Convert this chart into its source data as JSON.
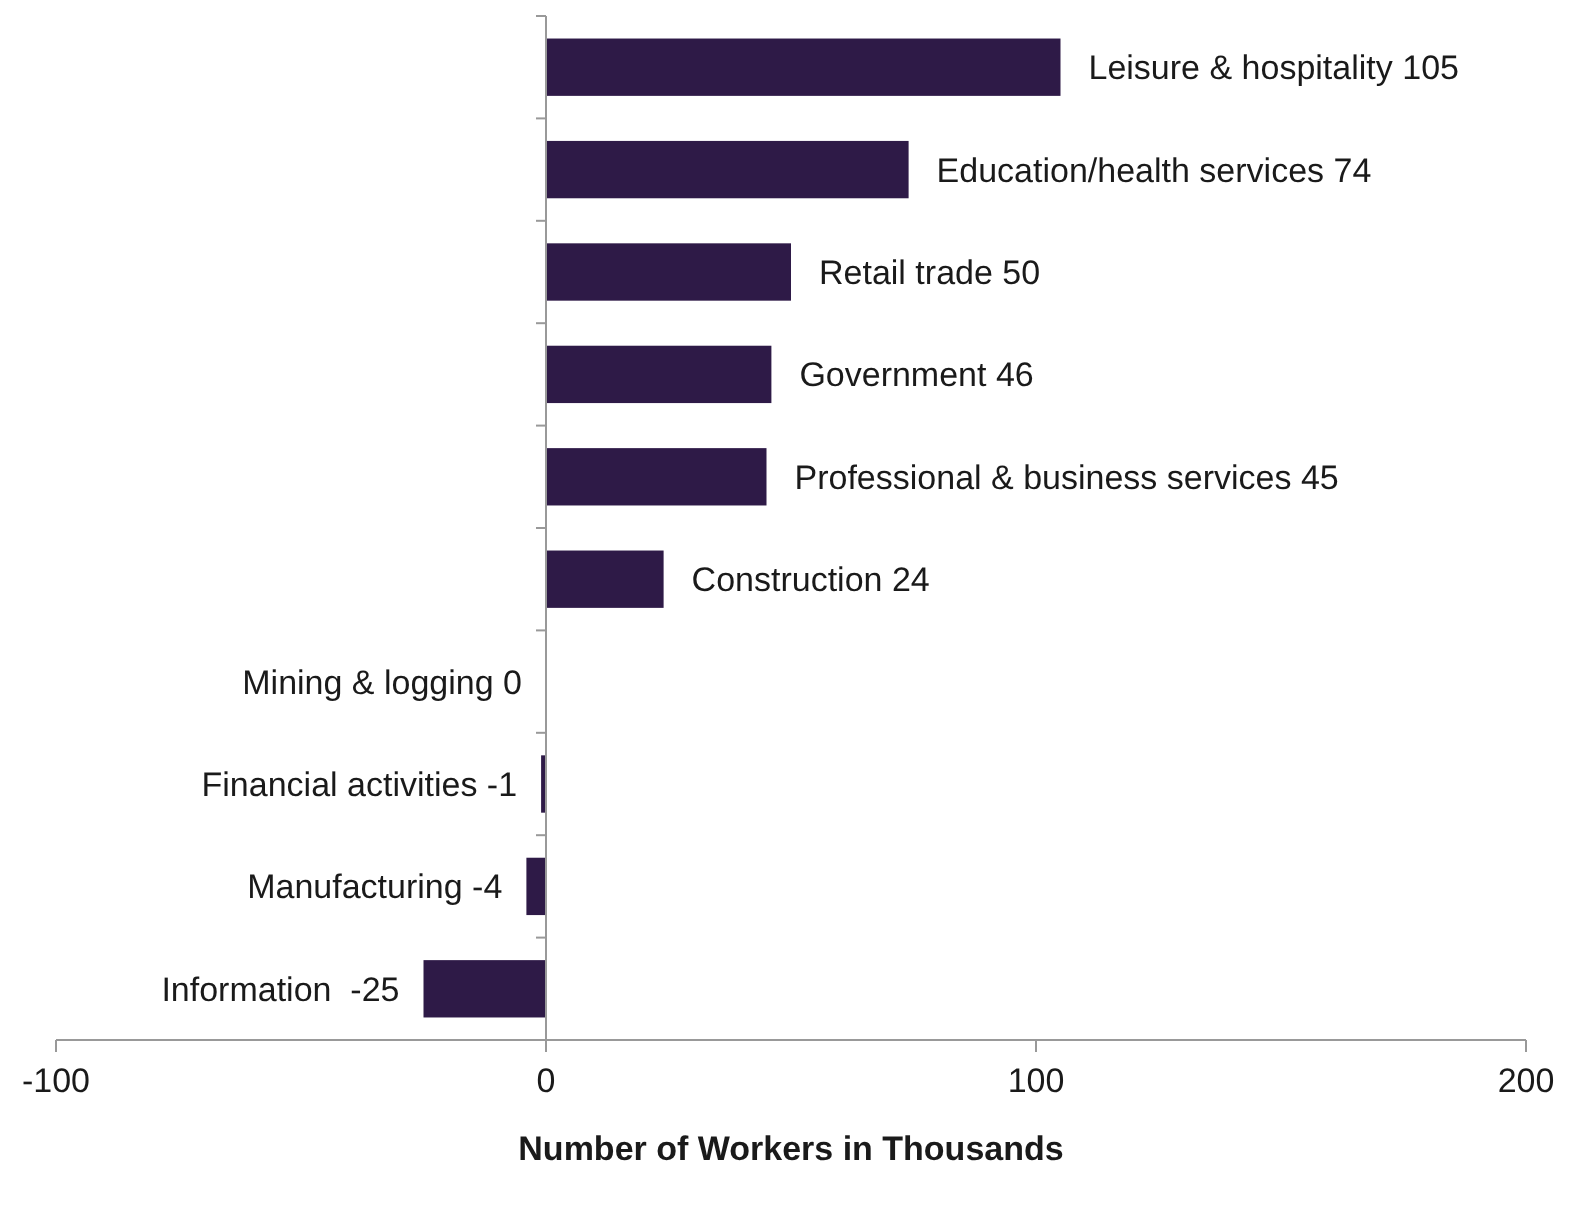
{
  "chart_data": {
    "type": "bar",
    "orientation": "horizontal",
    "xlabel": "Number of Workers in Thousands",
    "categories": [
      "Leisure & hospitality 105",
      "Education/health services 74",
      "Retail trade 50",
      "Government 46",
      "Professional & business services 45",
      "Construction 24",
      "Mining & logging 0",
      "Financial activities -1",
      "Manufacturing -4",
      "Information  -25"
    ],
    "values": [
      105,
      74,
      50,
      46,
      45,
      24,
      0,
      -1,
      -4,
      -25
    ],
    "color": "#2e1a47",
    "xlim": [
      -100,
      200
    ],
    "xticks": [
      -100,
      0,
      100,
      200
    ]
  }
}
